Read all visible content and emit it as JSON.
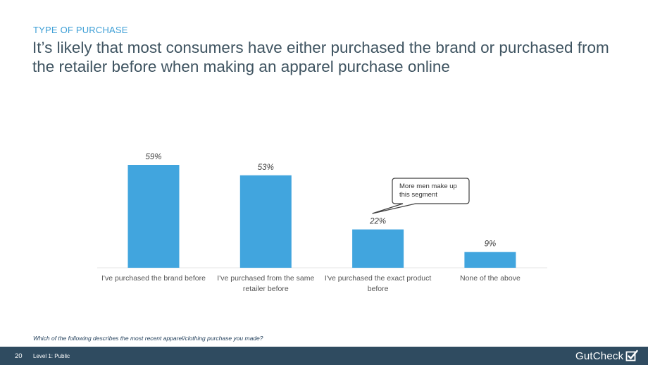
{
  "header": {
    "section": "TYPE OF PURCHASE",
    "title": "It’s likely that most consumers have either purchased the brand or purchased from the retailer before when making an apparel purchase online"
  },
  "chart_data": {
    "type": "bar",
    "title": "",
    "xlabel": "",
    "ylabel": "",
    "ylim": [
      0,
      70
    ],
    "categories": [
      [
        "I've purchased the brand before"
      ],
      [
        "I've purchased from the same",
        "retailer before"
      ],
      [
        "I've purchased the exact product",
        "before"
      ],
      [
        "None of the above"
      ]
    ],
    "values": [
      59,
      53,
      22,
      9
    ],
    "value_labels": [
      "59%",
      "53%",
      "22%",
      "9%"
    ],
    "annotations": [
      {
        "target_index": 2,
        "lines": [
          "More men make up",
          "this segment"
        ]
      }
    ],
    "colors": {
      "bar": "#41a5de"
    }
  },
  "question": "Which of the following describes the most recent apparel/clothing purchase you made?",
  "footer": {
    "page_number": "20",
    "level": "Level 1: Public",
    "brand": "GutCheck",
    "brand_icon": "checkbox-check-icon"
  }
}
